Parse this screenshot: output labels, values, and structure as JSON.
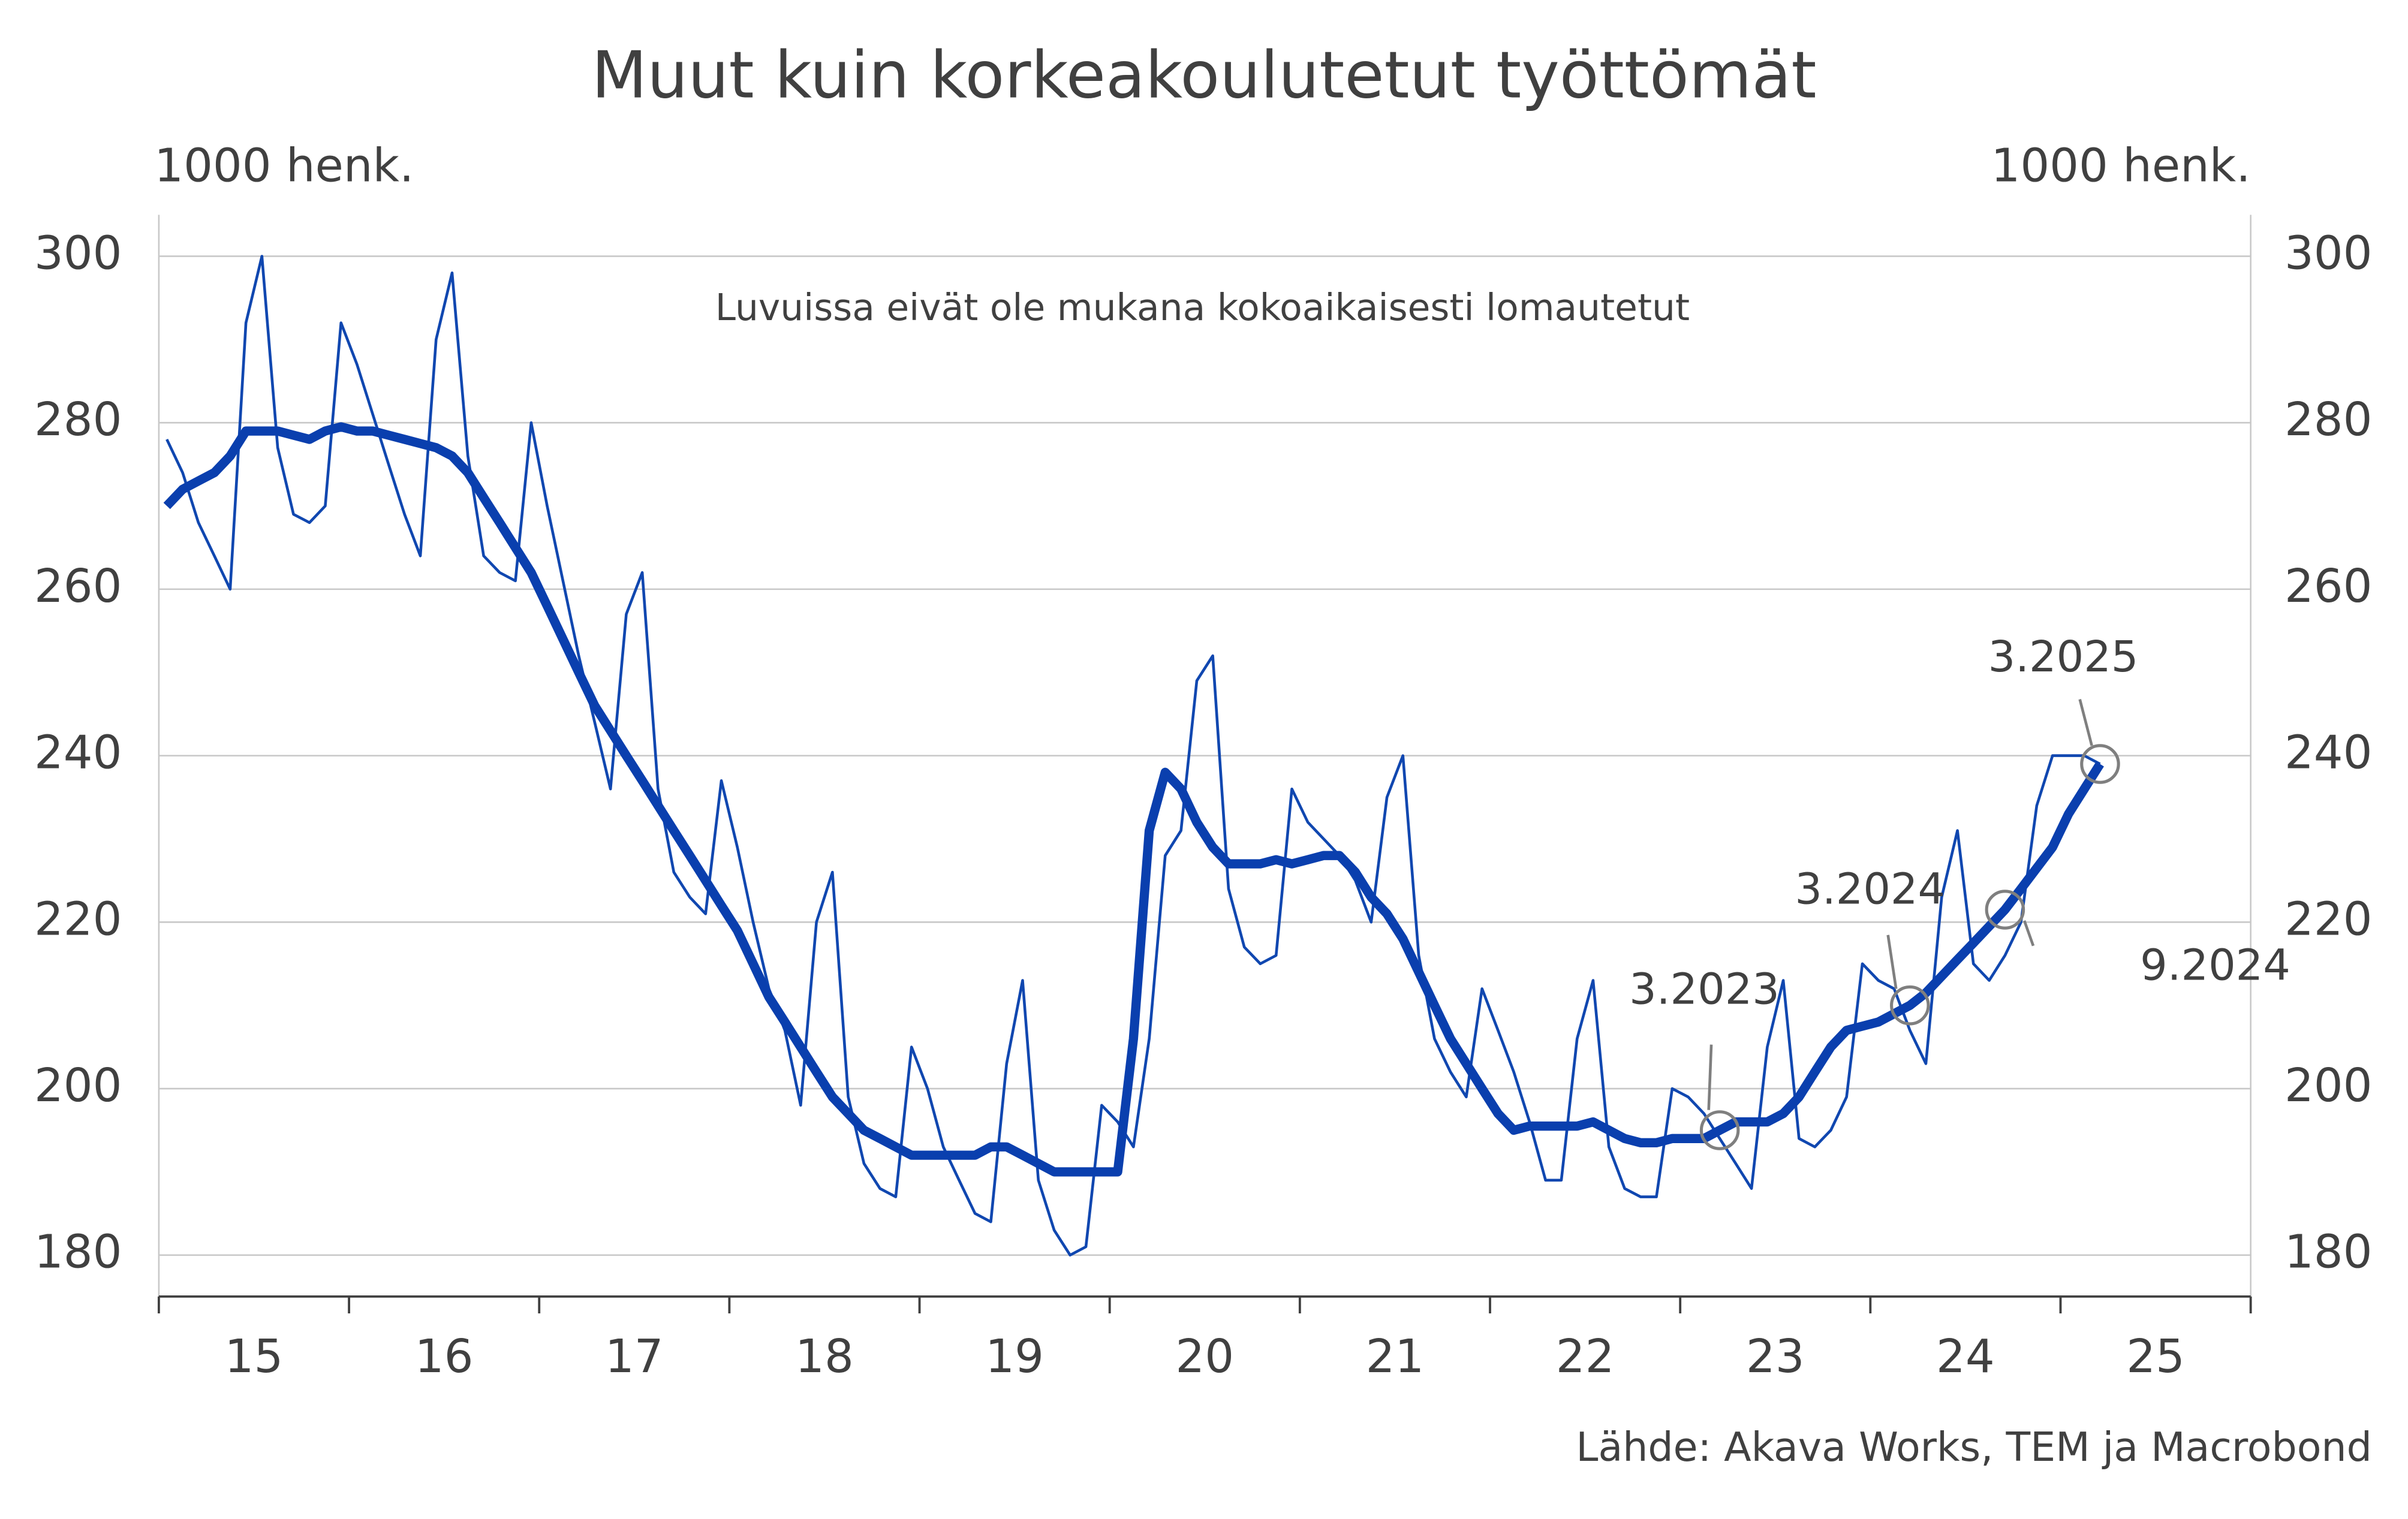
{
  "chart_data": {
    "type": "line",
    "title": "Muut kuin korkeakoulutetut työttömät",
    "note": "Luvuissa eivät ole mukana kokoaikaisesti lomautetut",
    "ylabel": "1000 henk.",
    "y2label": "1000 henk.",
    "source": "Lähde: Akava Works, TEM ja Macrobond",
    "xlim": [
      2015,
      2026
    ],
    "xticks": [
      {
        "value": 2015.5,
        "label": "15"
      },
      {
        "value": 2016.5,
        "label": "16"
      },
      {
        "value": 2017.5,
        "label": "17"
      },
      {
        "value": 2018.5,
        "label": "18"
      },
      {
        "value": 2019.5,
        "label": "19"
      },
      {
        "value": 2020.5,
        "label": "20"
      },
      {
        "value": 2021.5,
        "label": "21"
      },
      {
        "value": 2022.5,
        "label": "22"
      },
      {
        "value": 2023.5,
        "label": "23"
      },
      {
        "value": 2024.5,
        "label": "24"
      },
      {
        "value": 2025.5,
        "label": "25"
      }
    ],
    "xminorticks": [
      2015,
      2016,
      2017,
      2018,
      2019,
      2020,
      2021,
      2022,
      2023,
      2024,
      2025,
      2026
    ],
    "ylim": [
      180,
      300
    ],
    "yticks": [
      180,
      200,
      220,
      240,
      260,
      280,
      300
    ],
    "y2lim": [
      180,
      300
    ],
    "y2ticks": [
      180,
      200,
      220,
      240,
      260,
      280,
      300
    ],
    "grid": true,
    "x": [
      2015.042,
      2015.125,
      2015.208,
      2015.292,
      2015.375,
      2015.458,
      2015.542,
      2015.625,
      2015.708,
      2015.792,
      2015.875,
      2015.958,
      2016.042,
      2016.125,
      2016.208,
      2016.292,
      2016.375,
      2016.458,
      2016.542,
      2016.625,
      2016.708,
      2016.792,
      2016.875,
      2016.958,
      2017.042,
      2017.125,
      2017.208,
      2017.292,
      2017.375,
      2017.458,
      2017.542,
      2017.625,
      2017.708,
      2017.792,
      2017.875,
      2017.958,
      2018.042,
      2018.125,
      2018.208,
      2018.292,
      2018.375,
      2018.458,
      2018.542,
      2018.625,
      2018.708,
      2018.792,
      2018.875,
      2018.958,
      2019.042,
      2019.125,
      2019.208,
      2019.292,
      2019.375,
      2019.458,
      2019.542,
      2019.625,
      2019.708,
      2019.792,
      2019.875,
      2019.958,
      2020.042,
      2020.125,
      2020.208,
      2020.292,
      2020.375,
      2020.458,
      2020.542,
      2020.625,
      2020.708,
      2020.792,
      2020.875,
      2020.958,
      2021.042,
      2021.125,
      2021.208,
      2021.292,
      2021.375,
      2021.458,
      2021.542,
      2021.625,
      2021.708,
      2021.792,
      2021.875,
      2021.958,
      2022.042,
      2022.125,
      2022.208,
      2022.292,
      2022.375,
      2022.458,
      2022.542,
      2022.625,
      2022.708,
      2022.792,
      2022.875,
      2022.958,
      2023.042,
      2023.125,
      2023.208,
      2023.292,
      2023.375,
      2023.458,
      2023.542,
      2023.625,
      2023.708,
      2023.792,
      2023.875,
      2023.958,
      2024.042,
      2024.125,
      2024.208,
      2024.292,
      2024.375,
      2024.458,
      2024.542,
      2024.625,
      2024.708,
      2024.792,
      2024.875,
      2024.958,
      2025.042,
      2025.125,
      2025.208
    ],
    "series": [
      {
        "color": "#1047b0",
        "width": 1.8,
        "values": [
          278,
          274,
          268,
          264,
          260,
          292,
          300,
          277,
          269,
          268,
          270,
          292,
          287,
          281,
          275,
          269,
          264,
          290,
          298,
          276,
          264,
          262,
          261,
          280,
          270,
          261,
          252,
          244,
          236,
          257,
          262,
          236,
          226,
          223,
          221,
          237,
          229,
          220,
          212,
          207,
          198,
          220,
          226,
          199,
          191,
          188,
          187,
          205,
          200,
          193,
          189,
          185,
          184,
          203,
          213,
          189,
          183,
          180,
          181,
          198,
          196,
          193,
          206,
          228,
          231,
          249,
          252,
          224,
          217,
          215,
          216,
          236,
          232,
          230,
          228,
          225,
          220,
          235,
          240,
          216,
          206,
          202,
          199,
          212,
          207,
          202,
          196,
          189,
          189,
          206,
          213,
          193,
          188,
          187,
          187,
          200,
          199,
          197,
          194,
          191,
          188,
          205,
          213,
          194,
          193,
          195,
          199,
          215,
          213,
          212,
          207,
          203,
          223,
          231,
          215,
          213,
          216,
          220,
          234,
          240,
          240,
          240,
          239
        ]
      },
      {
        "color": "#0a3fae",
        "width": 6,
        "values": [
          270,
          272,
          273,
          274,
          276,
          279,
          279,
          279,
          278.5,
          278,
          279,
          279.5,
          279,
          279,
          278.5,
          278,
          277.5,
          277,
          276,
          274,
          271,
          268,
          265,
          262,
          258,
          254,
          250,
          246,
          243,
          240,
          237,
          234,
          231,
          228,
          225,
          222,
          219,
          215,
          211,
          208,
          205,
          202,
          199,
          197,
          195,
          194,
          193,
          192,
          192,
          192,
          192,
          192,
          193,
          193,
          192,
          191,
          190,
          190,
          190,
          190,
          190,
          206,
          231,
          238,
          236,
          232,
          229,
          227,
          227,
          227,
          227.5,
          227,
          227.5,
          228,
          228,
          226,
          223,
          221,
          218,
          214,
          210,
          206,
          203,
          200,
          197,
          195,
          195.5,
          195.5,
          195.5,
          195.5,
          196,
          195,
          194,
          193.5,
          193.5,
          194,
          194,
          194,
          195,
          196,
          196,
          196,
          197,
          199,
          202,
          205,
          207,
          207.5,
          208,
          209,
          210,
          211.5,
          213.5,
          215.5,
          217.5,
          219.5,
          221.5,
          224,
          226.5,
          229,
          233,
          236,
          239
        ]
      }
    ],
    "annotations": [
      {
        "text": "3.2023",
        "x": 2023.208,
        "y": 195
      },
      {
        "text": "3.2024",
        "x": 2024.208,
        "y": 210
      },
      {
        "text": "9.2024",
        "x": 2024.708,
        "y": 221.5
      },
      {
        "text": "3.2025",
        "x": 2025.208,
        "y": 239
      }
    ]
  }
}
